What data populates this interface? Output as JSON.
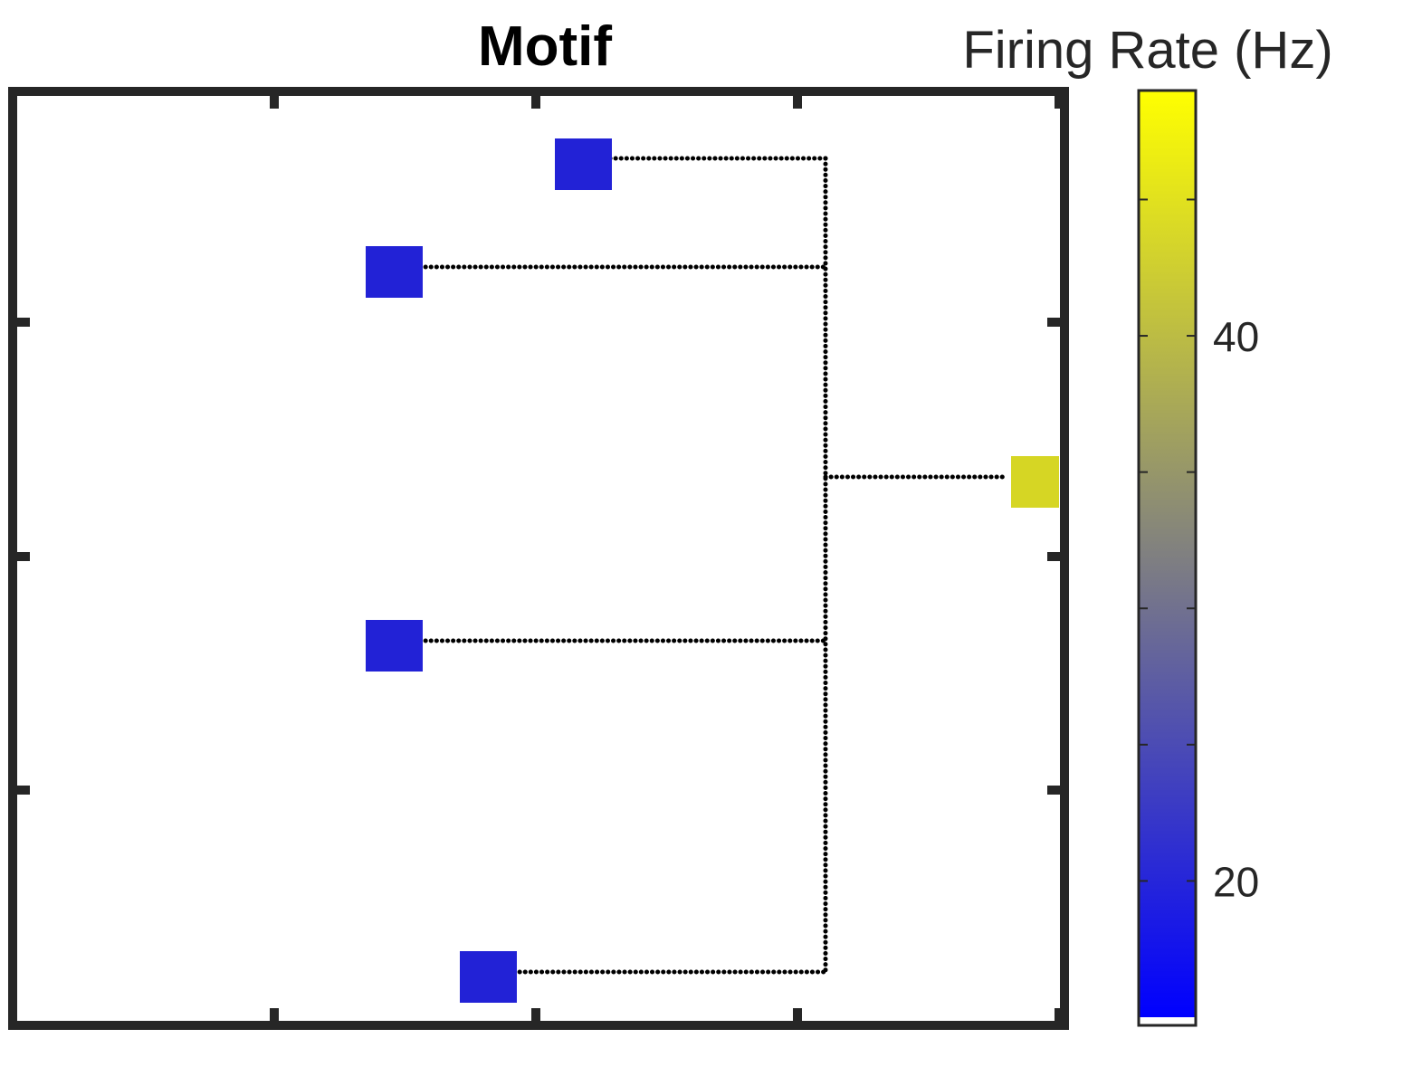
{
  "title": "Motif",
  "colorbar": {
    "label": "Firing Rate (Hz)",
    "min": 15,
    "max": 49,
    "ticks": [
      20,
      25,
      30,
      35,
      40,
      45
    ],
    "labeled_ticks": [
      {
        "value": 20,
        "label": "20"
      },
      {
        "value": 40,
        "label": "40"
      }
    ],
    "colors": {
      "low": "#0000ff",
      "mid": "#808080",
      "high": "#ffff00"
    }
  },
  "nodes": [
    {
      "id": "node-1",
      "firing_rate": 18,
      "color": "#2222d6"
    },
    {
      "id": "node-2",
      "firing_rate": 18,
      "color": "#2222d6"
    },
    {
      "id": "node-3",
      "firing_rate": 18,
      "color": "#2222d6"
    },
    {
      "id": "node-4",
      "firing_rate": 18,
      "color": "#2222d6"
    },
    {
      "id": "node-5",
      "firing_rate": 42,
      "color": "#d6d624"
    }
  ],
  "connector_color": "#000000",
  "axes_color": "#262626"
}
